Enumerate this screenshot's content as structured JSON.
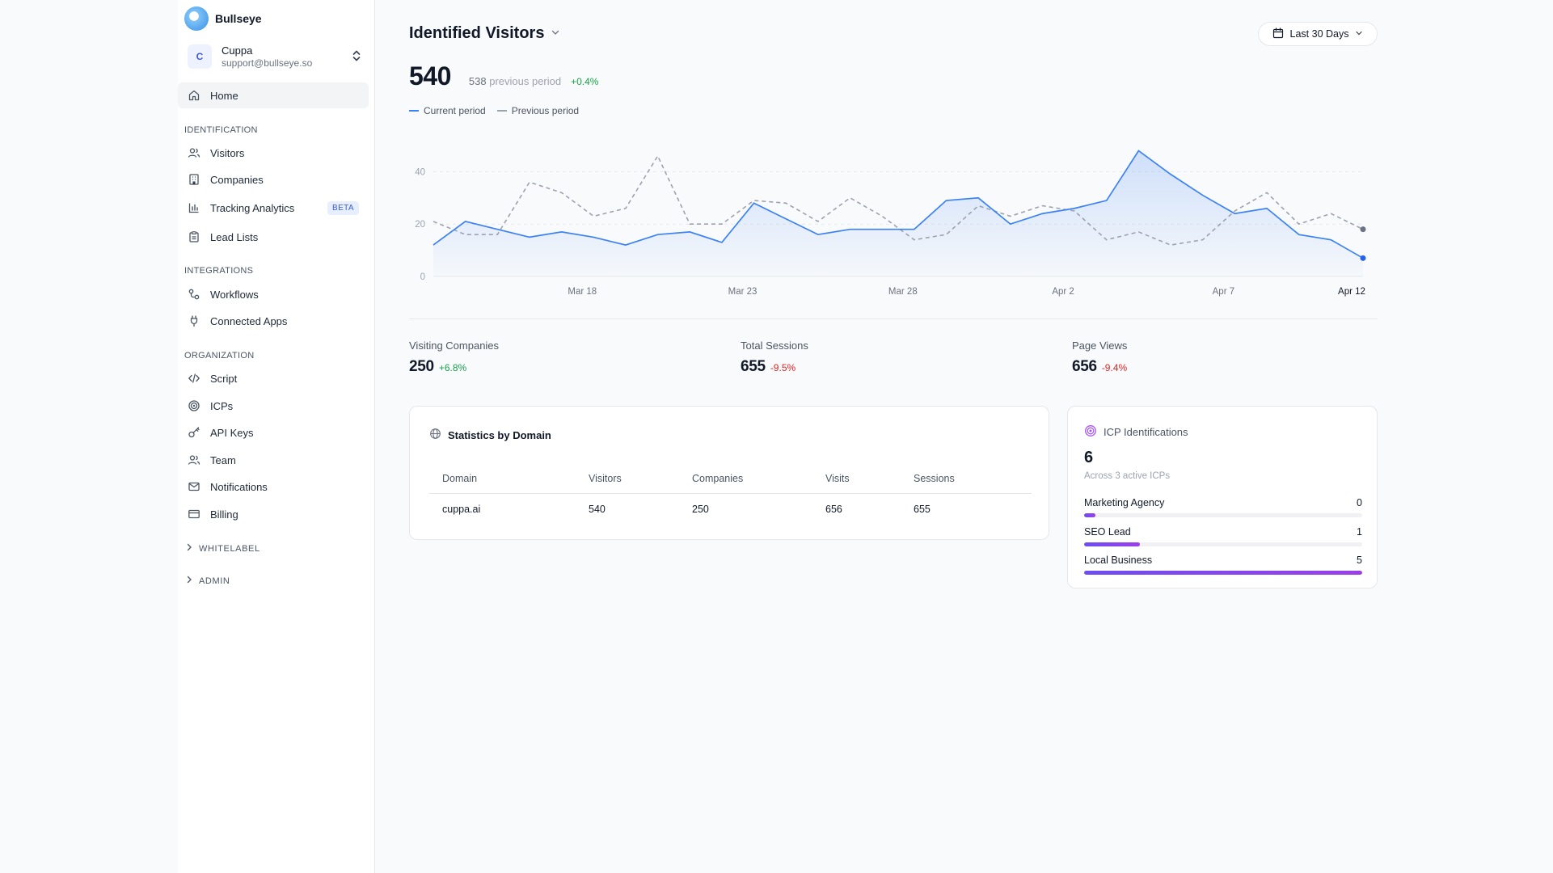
{
  "brand": {
    "name": "Bullseye"
  },
  "org": {
    "initial": "C",
    "name": "Cuppa",
    "email": "support@bullseye.so"
  },
  "nav": {
    "home": "Home",
    "sections": {
      "identification": "IDENTIFICATION",
      "integrations": "INTEGRATIONS",
      "organization": "ORGANIZATION"
    },
    "identification_items": [
      {
        "label": "Visitors",
        "icon": "users-icon"
      },
      {
        "label": "Companies",
        "icon": "building-icon"
      },
      {
        "label": "Tracking Analytics",
        "icon": "bar-chart-icon",
        "badge": "BETA"
      },
      {
        "label": "Lead Lists",
        "icon": "clipboard-icon"
      }
    ],
    "integrations_items": [
      {
        "label": "Workflows",
        "icon": "workflow-icon"
      },
      {
        "label": "Connected Apps",
        "icon": "plug-icon"
      }
    ],
    "organization_items": [
      {
        "label": "Script",
        "icon": "code-icon"
      },
      {
        "label": "ICPs",
        "icon": "target-icon"
      },
      {
        "label": "API Keys",
        "icon": "key-icon"
      },
      {
        "label": "Team",
        "icon": "users-icon"
      },
      {
        "label": "Notifications",
        "icon": "mail-icon"
      },
      {
        "label": "Billing",
        "icon": "credit-card-icon"
      }
    ],
    "collapsibles": [
      "WHITELABEL",
      "ADMIN"
    ]
  },
  "header": {
    "title": "Identified Visitors",
    "date_range": "Last 30 Days"
  },
  "summary": {
    "value": "540",
    "previous_value": "538",
    "previous_label": "previous period",
    "change": "+0.4%"
  },
  "legend": {
    "current": "Current period",
    "previous": "Previous period"
  },
  "chart_data": {
    "type": "area",
    "x_tick_labels": [
      "Mar 18",
      "Mar 23",
      "Mar 28",
      "Apr 2",
      "Apr 7",
      "Apr 12"
    ],
    "y_ticks": [
      0,
      20,
      40
    ],
    "ylim": [
      0,
      50
    ],
    "grid": true,
    "series": [
      {
        "name": "Current period",
        "color": "#3b82f6",
        "values": [
          12,
          21,
          18,
          15,
          17,
          15,
          12,
          16,
          17,
          13,
          28,
          22,
          16,
          18,
          18,
          18,
          29,
          30,
          20,
          24,
          26,
          29,
          48,
          39,
          31,
          24,
          26,
          16,
          14,
          7
        ]
      },
      {
        "name": "Previous period",
        "color": "#9ca3af",
        "values": [
          21,
          16,
          16,
          36,
          32,
          23,
          26,
          46,
          20,
          20,
          29,
          28,
          21,
          30,
          23,
          14,
          16,
          27,
          23,
          27,
          25,
          14,
          17,
          12,
          14,
          25,
          32,
          20,
          24,
          18
        ]
      }
    ]
  },
  "stats": [
    {
      "label": "Visiting Companies",
      "value": "250",
      "change": "+6.8%",
      "trend": "pos"
    },
    {
      "label": "Total Sessions",
      "value": "655",
      "change": "-9.5%",
      "trend": "neg"
    },
    {
      "label": "Page Views",
      "value": "656",
      "change": "-9.4%",
      "trend": "neg"
    }
  ],
  "domain_table": {
    "title": "Statistics by Domain",
    "columns": [
      "Domain",
      "Visitors",
      "Companies",
      "Visits",
      "Sessions"
    ],
    "rows": [
      [
        "cuppa.ai",
        "540",
        "250",
        "656",
        "655"
      ]
    ]
  },
  "icp": {
    "title": "ICP Identifications",
    "count": "6",
    "subtitle": "Across 3 active ICPs",
    "items": [
      {
        "label": "Marketing Agency",
        "value": "0",
        "fill_fraction": 0.04
      },
      {
        "label": "SEO Lead",
        "value": "1",
        "fill_fraction": 0.2
      },
      {
        "label": "Local Business",
        "value": "5",
        "fill_fraction": 1.0
      }
    ]
  }
}
